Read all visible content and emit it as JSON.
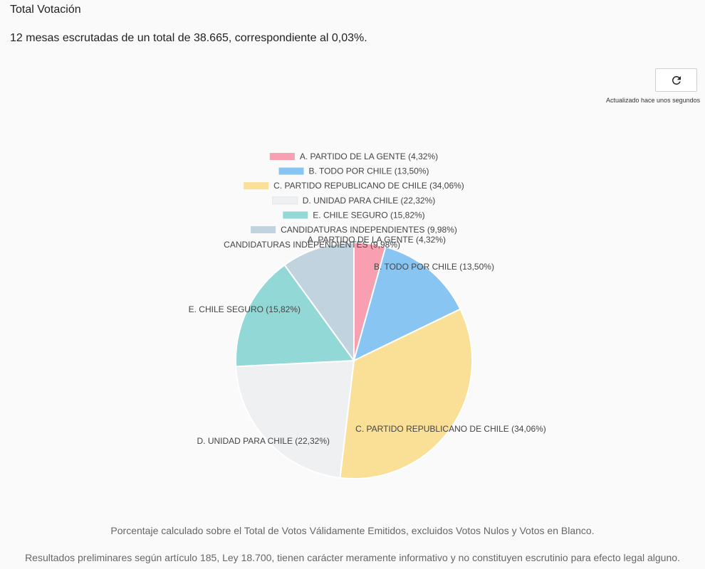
{
  "header": {
    "title": "Total Votación",
    "summary": "12 mesas escrutadas de un total de 38.665, correspondiente al 0,03%."
  },
  "refresh": {
    "icon": "refresh-icon",
    "updated_label": "Actualizado hace unos segundos"
  },
  "chart_data": {
    "type": "pie",
    "legend_position": "top",
    "slices": [
      {
        "name": "A. PARTIDO DE LA GENTE (4,32%)",
        "value": 4.32,
        "color": "#f8a0b1"
      },
      {
        "name": "B. TODO POR CHILE (13,50%)",
        "value": 13.5,
        "color": "#88c5f2"
      },
      {
        "name": "C. PARTIDO REPUBLICANO DE CHILE (34,06%)",
        "value": 34.06,
        "color": "#fadf96"
      },
      {
        "name": "D. UNIDAD PARA CHILE (22,32%)",
        "value": 22.32,
        "color": "#eef0f2"
      },
      {
        "name": "E. CHILE SEGURO (15,82%)",
        "value": 15.82,
        "color": "#92d8d7"
      },
      {
        "name": "CANDIDATURAS INDEPENDIENTES (9,98%)",
        "value": 9.98,
        "color": "#c0d3de"
      }
    ]
  },
  "footer": {
    "note1": "Porcentaje calculado sobre el Total de Votos Válidamente Emitidos, excluidos Votos Nulos y Votos en Blanco.",
    "note2": "Resultados preliminares según artículo 185, Ley 18.700, tienen carácter meramente informativo y no constituyen escrutinio para efecto legal alguno."
  }
}
